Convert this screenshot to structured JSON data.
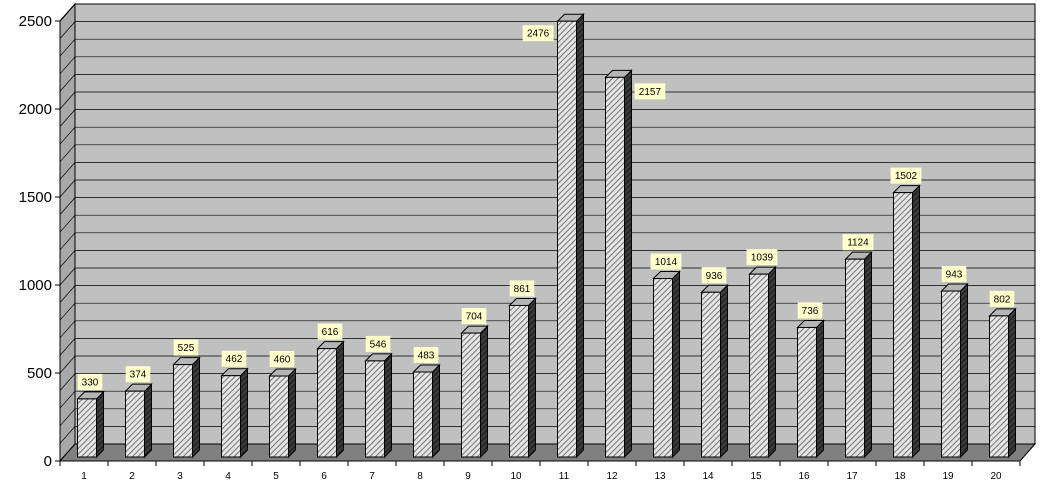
{
  "chart_data": {
    "type": "bar",
    "categories": [
      "1",
      "2",
      "3",
      "4",
      "5",
      "6",
      "7",
      "8",
      "9",
      "10",
      "11",
      "12",
      "13",
      "14",
      "15",
      "16",
      "17",
      "18",
      "19",
      "20"
    ],
    "values": [
      330,
      374,
      525,
      462,
      460,
      616,
      546,
      483,
      704,
      861,
      2476,
      2157,
      1014,
      936,
      1039,
      736,
      1124,
      1502,
      943,
      802
    ],
    "labels": [
      "330",
      "374",
      "525",
      "462",
      "460",
      "616",
      "546",
      "483",
      "704",
      "861",
      "2476",
      "2157",
      "1014",
      "936",
      "1039",
      "736",
      "1124",
      "1502",
      "943",
      "802"
    ],
    "y_ticks": [
      "0",
      "500",
      "1000",
      "1500",
      "2000",
      "2500"
    ],
    "ylim": [
      0,
      2500
    ],
    "title": "",
    "xlabel": "",
    "ylabel": "",
    "grid": true,
    "legend": "none",
    "style": "3d-column",
    "colors": {
      "wall": "#c0c0c0",
      "floor": "#808080",
      "gridline": "#000000",
      "bar_fill": "#e0e0e0",
      "bar_hatch": "#555555",
      "bar_side": "#3a3a3a",
      "bar_top": "#b5b5b5",
      "label_bg": "#ffffcc"
    }
  }
}
